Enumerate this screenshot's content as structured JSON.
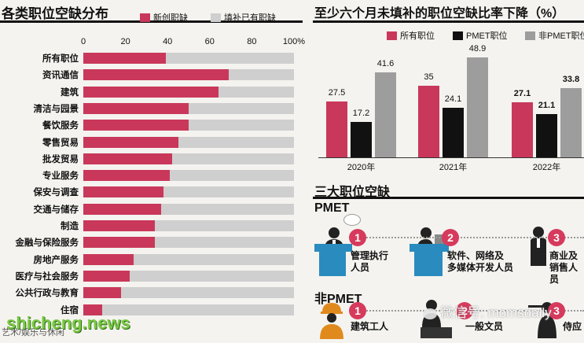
{
  "left": {
    "title": "各类职位空缺分布",
    "legend": {
      "new": "新创职缺",
      "fill": "填补已有职缺"
    },
    "colors": {
      "new": "#c9385a",
      "fill": "#cfcfcf"
    },
    "source": "艺术/娱乐与休闲"
  },
  "chart_data": [
    {
      "type": "bar",
      "orientation": "horizontal",
      "stacked_to_100": true,
      "xlim": [
        0,
        100
      ],
      "tick_labels": [
        "0",
        "20",
        "40",
        "60",
        "80",
        "100%"
      ],
      "categories": [
        "所有职位",
        "资讯通信",
        "建筑",
        "清洁与园景",
        "餐饮服务",
        "零售贸易",
        "批发贸易",
        "专业服务",
        "保安与调查",
        "交通与储存",
        "制造",
        "金融与保险服务",
        "房地产服务",
        "医疗与社会服务",
        "公共行政与教育",
        "住宿"
      ],
      "series": [
        {
          "name": "新创职缺",
          "values": [
            39,
            69,
            64,
            50,
            50,
            45,
            42,
            41,
            38,
            37,
            34,
            34,
            24,
            22,
            18,
            9
          ]
        },
        {
          "name": "填补已有职缺",
          "values": [
            61,
            31,
            36,
            50,
            50,
            55,
            58,
            59,
            62,
            63,
            66,
            66,
            76,
            78,
            82,
            91
          ]
        }
      ]
    },
    {
      "type": "bar",
      "title": "至少六个月未填补的职位空缺比率下降（%）",
      "categories": [
        "2020年",
        "2021年",
        "2022年"
      ],
      "series": [
        {
          "name": "所有职位",
          "values": [
            27.5,
            35,
            27.1
          ]
        },
        {
          "name": "PMET职位",
          "values": [
            17.2,
            24.1,
            21.1
          ]
        },
        {
          "name": "非PMET职位",
          "values": [
            41.6,
            48.9,
            33.8
          ]
        }
      ],
      "ylim": [
        0,
        60
      ],
      "value_labels": [
        "27.5",
        "17.2",
        "41.6",
        "35",
        "24.1",
        "48.9",
        "27.1",
        "21.1",
        "33.8"
      ]
    }
  ],
  "right": {
    "title": "至少六个月未填补的职位空缺比率下降（%）",
    "legend": [
      "所有职位",
      "PMET职位",
      "非PMET职位"
    ],
    "colors": [
      "#c9385a",
      "#111111",
      "#9d9d9d"
    ]
  },
  "jobs": {
    "title": "三大职位空缺",
    "pmet_label": "PMET",
    "non_pmet_label": "非PMET",
    "pmet": [
      {
        "num": "1",
        "text1": "管理执行",
        "text2": "人员"
      },
      {
        "num": "2",
        "text1": "软件、网络及",
        "text2": "多媒体开发人员"
      },
      {
        "num": "3",
        "text1": "商业及",
        "text2": "销售人员"
      }
    ],
    "non_pmet": [
      {
        "num": "1",
        "text1": "建筑工人"
      },
      {
        "num": "2",
        "text1": "一般文员"
      },
      {
        "num": "3",
        "text1": "侍应"
      }
    ]
  },
  "watermarks": {
    "wechat": "微信号: momsdaily",
    "site": "shicheng.news"
  }
}
